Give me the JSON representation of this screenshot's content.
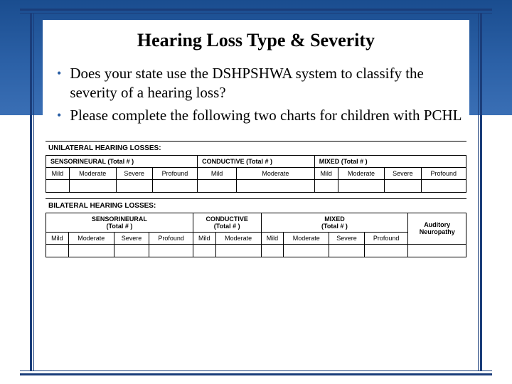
{
  "title": "Hearing Loss Type & Severity",
  "bullets": [
    "Does your state use the DSHPSHWA system to classify the severity of a hearing loss?",
    "Please complete the following two charts for children with PCHL"
  ],
  "table1": {
    "heading": "UNILATERAL HEARING LOSSES:",
    "groups": [
      {
        "label": "SENSORINEURAL  (Total #          )",
        "span": 4,
        "cols": [
          "Mild",
          "Moderate",
          "Severe",
          "Profound"
        ]
      },
      {
        "label": "CONDUCTIVE (Total #        )",
        "span": 2,
        "cols": [
          "Mild",
          "Moderate"
        ]
      },
      {
        "label": "MIXED    (Total #          )",
        "span": 4,
        "cols": [
          "Mild",
          "Moderate",
          "Severe",
          "Profound"
        ]
      }
    ]
  },
  "table2": {
    "heading": "BILATERAL HEARING LOSSES:",
    "groups": [
      {
        "label": "SENSORINEURAL",
        "sub": "(Total #          )",
        "span": 4,
        "cols": [
          "Mild",
          "Moderate",
          "Severe",
          "Profound"
        ]
      },
      {
        "label": "CONDUCTIVE",
        "sub": "(Total #       )",
        "span": 2,
        "cols": [
          "Mild",
          "Moderate"
        ]
      },
      {
        "label": "MIXED",
        "sub": "(Total #         )",
        "span": 4,
        "cols": [
          "Mild",
          "Moderate",
          "Severe",
          "Profound"
        ]
      },
      {
        "label": "Auditory",
        "sub": "Neuropathy",
        "span": 1,
        "cols": [
          ""
        ]
      }
    ]
  },
  "colors": {
    "frame": "#1a3d7a",
    "accent": "#2a5fa5",
    "bg_top": "#1a4d8f",
    "bg": "#ffffff"
  }
}
